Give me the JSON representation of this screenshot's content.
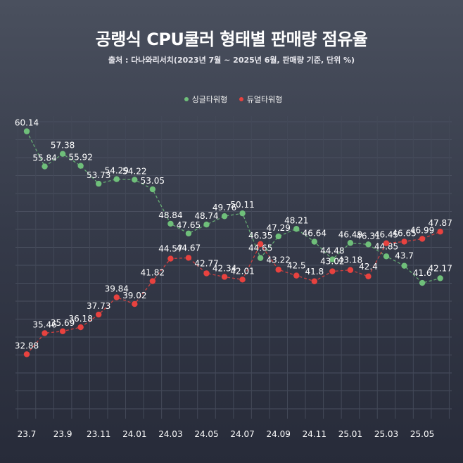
{
  "chart_data": {
    "type": "line",
    "title": "공랭식 CPU쿨러 형태별 판매량 점유율",
    "subtitle": "출처 : 다나와리서치(2023년 7월 ~ 2025년 6월, 판매량 기준, 단위 %)",
    "xlabel": "",
    "ylabel": "",
    "x": [
      "23.7",
      "23.8",
      "23.9",
      "23.10",
      "23.11",
      "23.12",
      "24.01",
      "24.02",
      "24.03",
      "24.04",
      "24.05",
      "24.06",
      "24.07",
      "24.08",
      "24.09",
      "24.10",
      "24.11",
      "24.12",
      "25.01",
      "25.02",
      "25.03",
      "25.04",
      "25.05",
      "25.06"
    ],
    "x_tick_labels": [
      "23.7",
      "23.9",
      "23.11",
      "24.01",
      "24.03",
      "24.05",
      "24.07",
      "24.09",
      "24.11",
      "25.01",
      "25.03",
      "25.05"
    ],
    "ylim": [
      25,
      62
    ],
    "grid": true,
    "legend_position": "top-center",
    "series": [
      {
        "name": "싱글타워형",
        "color": "#6fbf7a",
        "values": [
          60.14,
          55.84,
          57.38,
          55.92,
          53.73,
          54.29,
          54.22,
          53.05,
          48.84,
          47.65,
          48.74,
          49.76,
          50.11,
          44.65,
          47.29,
          48.21,
          46.64,
          44.48,
          46.49,
          46.31,
          44.85,
          43.7,
          41.6,
          42.17
        ]
      },
      {
        "name": "듀얼타워형",
        "color": "#e8423f",
        "values": [
          32.88,
          35.46,
          35.69,
          36.18,
          37.73,
          39.84,
          39.02,
          41.82,
          44.57,
          44.67,
          42.77,
          42.34,
          42.01,
          46.35,
          43.22,
          42.5,
          41.8,
          43.02,
          43.18,
          42.4,
          46.45,
          46.65,
          46.99,
          47.87
        ]
      }
    ]
  }
}
